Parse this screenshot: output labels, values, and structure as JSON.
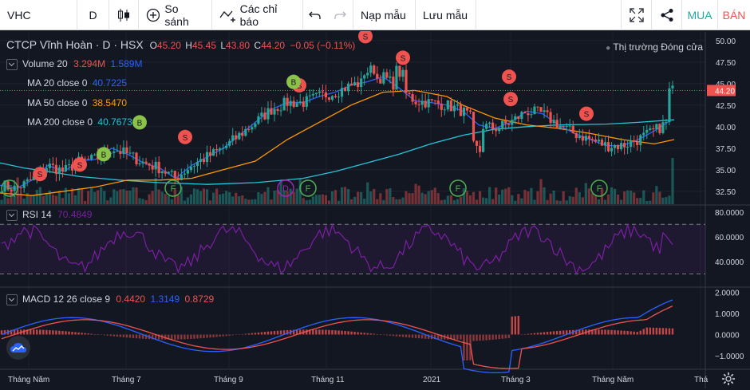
{
  "toolbar": {
    "symbol": "VHC",
    "interval": "D",
    "compare": "So sánh",
    "indicators": "Các chỉ báo",
    "load_template": "Nạp mẫu",
    "save_template": "Lưu mẫu",
    "buy": "MUA",
    "sell": "BÁN"
  },
  "header": {
    "title": "CTCP Vĩnh Hoàn · D · HSX",
    "ohlc": {
      "o_label": "O",
      "o": "45.20",
      "h_label": "H",
      "h": "45.45",
      "l_label": "L",
      "l": "43.80",
      "c_label": "C",
      "c": "44.20",
      "change": "−0.05 (−0.11%)"
    },
    "market_status": "Thị trường Đóng cửa"
  },
  "legends": {
    "volume": {
      "label": "Volume 20",
      "v1": "3.294M",
      "v2": "1.589M"
    },
    "ma20": {
      "label": "MA 20 close 0",
      "value": "40.7225"
    },
    "ma50": {
      "label": "MA 50 close 0",
      "value": "38.5470"
    },
    "ma200": {
      "label": "MA 200 close 0",
      "value": "40.7673"
    },
    "rsi": {
      "label": "RSI 14",
      "value": "70.4849"
    },
    "macd": {
      "label": "MACD 12 26 close 9",
      "v1": "0.4420",
      "v2": "1.3149",
      "v3": "0.8729"
    }
  },
  "colors": {
    "up": "#26a69a",
    "down": "#ef5350",
    "ma20": "#2962ff",
    "ma50": "#ff9800",
    "ma200": "#26c6da",
    "rsi": "#7b1fa2",
    "macd_line": "#2962ff",
    "signal_line": "#ef5350",
    "price_tag": "#ef5350"
  },
  "price_axis": {
    "ticks": [
      "50.00",
      "47.50",
      "45.00",
      "42.50",
      "40.00",
      "37.50",
      "35.00",
      "32.50"
    ],
    "last_price": "44.20"
  },
  "rsi_axis": {
    "ticks": [
      "80.0000",
      "60.0000",
      "40.0000"
    ]
  },
  "macd_axis": {
    "ticks": [
      "2.0000",
      "1.0000",
      "0.0000",
      "−1.0000"
    ]
  },
  "time_axis": {
    "labels": [
      "Tháng Năm",
      "Tháng 7",
      "Tháng 9",
      "Tháng 11",
      "2021",
      "Tháng 3",
      "Tháng Năm",
      "Thá"
    ]
  },
  "chart_data": {
    "type": "candlestick",
    "symbol": "VHC",
    "price_range": [
      31,
      51
    ],
    "ma20_path": [
      [
        0,
        33.2
      ],
      [
        20,
        32.8
      ],
      [
        40,
        33.8
      ],
      [
        60,
        35.5
      ],
      [
        80,
        34.8
      ],
      [
        100,
        36.0
      ],
      [
        120,
        36.2
      ],
      [
        140,
        37.5
      ],
      [
        160,
        36.8
      ],
      [
        180,
        35.8
      ],
      [
        200,
        35.2
      ],
      [
        220,
        34.0
      ],
      [
        240,
        35.5
      ],
      [
        260,
        36.5
      ],
      [
        280,
        37.5
      ],
      [
        300,
        39.0
      ],
      [
        320,
        40.5
      ],
      [
        340,
        42.0
      ],
      [
        360,
        42.8
      ],
      [
        380,
        42.8
      ],
      [
        400,
        43.5
      ],
      [
        420,
        44.0
      ],
      [
        440,
        44.8
      ],
      [
        460,
        45.2
      ],
      [
        480,
        45.8
      ],
      [
        500,
        44.5
      ],
      [
        520,
        43.0
      ],
      [
        540,
        42.8
      ],
      [
        560,
        42.5
      ],
      [
        580,
        41.8
      ],
      [
        600,
        40.2
      ],
      [
        620,
        39.8
      ],
      [
        640,
        40.5
      ],
      [
        660,
        41.8
      ],
      [
        680,
        41.5
      ],
      [
        700,
        40.2
      ],
      [
        720,
        39.2
      ],
      [
        740,
        38.5
      ],
      [
        760,
        37.8
      ],
      [
        780,
        37.8
      ],
      [
        800,
        38.5
      ],
      [
        820,
        39.5
      ],
      [
        840,
        40.7
      ]
    ],
    "ma50_path": [
      [
        0,
        32.3
      ],
      [
        40,
        32.0
      ],
      [
        80,
        32.5
      ],
      [
        120,
        33.0
      ],
      [
        160,
        33.8
      ],
      [
        200,
        33.8
      ],
      [
        240,
        34.0
      ],
      [
        280,
        35.0
      ],
      [
        320,
        36.0
      ],
      [
        360,
        38.5
      ],
      [
        400,
        40.5
      ],
      [
        440,
        42.5
      ],
      [
        480,
        44.0
      ],
      [
        520,
        44.2
      ],
      [
        560,
        43.5
      ],
      [
        580,
        42.5
      ],
      [
        620,
        41.0
      ],
      [
        660,
        40.2
      ],
      [
        700,
        39.8
      ],
      [
        740,
        39.2
      ],
      [
        780,
        38.5
      ],
      [
        820,
        38.0
      ],
      [
        845,
        38.5
      ]
    ],
    "ma200_path": [
      [
        0,
        35.8
      ],
      [
        30,
        35.2
      ],
      [
        60,
        34.8
      ],
      [
        100,
        34.2
      ],
      [
        150,
        33.8
      ],
      [
        200,
        33.5
      ],
      [
        260,
        33.3
      ],
      [
        320,
        33.5
      ],
      [
        380,
        34.0
      ],
      [
        420,
        34.8
      ],
      [
        460,
        35.8
      ],
      [
        500,
        36.8
      ],
      [
        540,
        38.0
      ],
      [
        580,
        39.0
      ],
      [
        620,
        39.7
      ],
      [
        660,
        40.0
      ],
      [
        700,
        40.2
      ],
      [
        760,
        40.3
      ],
      [
        800,
        40.5
      ],
      [
        845,
        40.8
      ]
    ],
    "signals_buy": [
      [
        130,
        36.8
      ],
      [
        175,
        40.5
      ],
      [
        368,
        45.2
      ]
    ],
    "signals_sell": [
      [
        50,
        34.5
      ],
      [
        100,
        35.6
      ],
      [
        232,
        38.8
      ],
      [
        375,
        44.8
      ],
      [
        458,
        50.5
      ],
      [
        505,
        48.0
      ],
      [
        638,
        45.8
      ],
      [
        640,
        43.2
      ],
      [
        735,
        41.5
      ]
    ],
    "events": [
      [
        12,
        "F"
      ],
      [
        217,
        "F"
      ],
      [
        358,
        "D"
      ],
      [
        386,
        "F"
      ],
      [
        574,
        "F"
      ],
      [
        751,
        "F"
      ]
    ]
  }
}
